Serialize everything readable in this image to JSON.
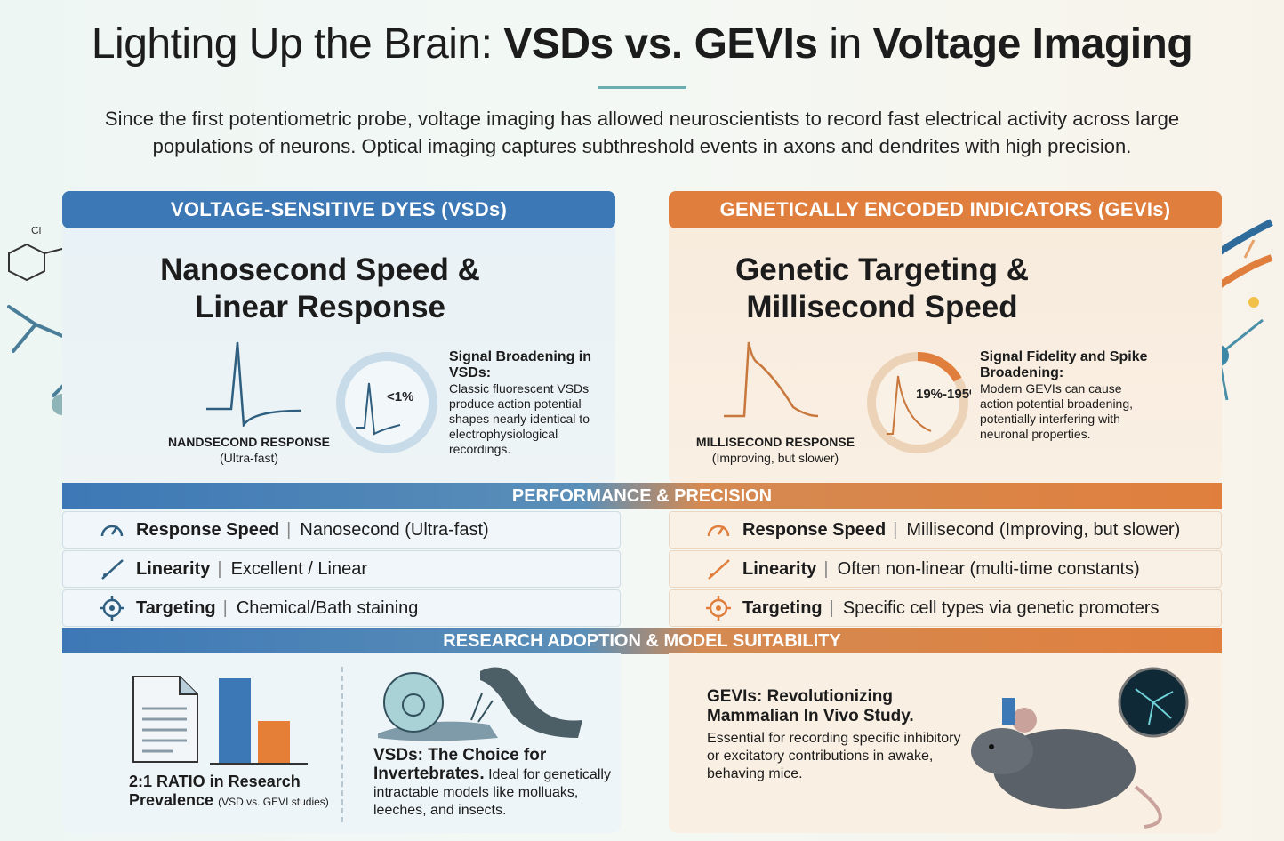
{
  "title": {
    "part1": "Lighting Up the Brain: ",
    "part2": "VSDs vs. GEVIs",
    "part3": " in ",
    "part4": "Voltage Imaging"
  },
  "intro": "Since the first potentiometric probe, voltage imaging has allowed neuroscientists to record fast electrical activity across large populations of neurons. Optical imaging captures subthreshold events in axons and dendrites with high precision.",
  "colors": {
    "vsd": "#3d78b6",
    "gevi": "#e07f3d"
  },
  "vsd": {
    "header": "VOLTAGE-SENSITIVE DYES (VSDs)",
    "headline": "Nanosecond Speed & Linear Response",
    "wave_label": "NANDSECOND RESPONSE",
    "wave_sub": "(Ultra-fast)",
    "ring_value": "<1%",
    "side_title": "Signal Broadening in VSDs:",
    "side_text": "Classic fluorescent VSDs produce action potential shapes nearly identical to electrophysiological recordings.",
    "molecule_label": "Cl"
  },
  "gevi": {
    "header": "GENETICALLY ENCODED INDICATORS (GEVIs)",
    "headline": "Genetic Targeting & Millisecond Speed",
    "wave_label": "MILLISECOND RESPONSE",
    "wave_sub": "(Improving, but slower)",
    "ring_value": "19%-195%",
    "side_title": "Signal Fidelity and Spike Broadening:",
    "side_text": "Modern GEVIs can cause action potential broadening, potentially interfering with neuronal properties."
  },
  "performance": {
    "header": "PERFORMANCE & PRECISION",
    "vsd_rows": [
      {
        "icon": "speedometer-icon",
        "label": "Response Speed",
        "value": "Nanosecond (Ultra-fast)"
      },
      {
        "icon": "linearity-icon",
        "label": "Linearity",
        "value": "Excellent / Linear"
      },
      {
        "icon": "target-icon",
        "label": "Targeting",
        "value": "Chemical/Bath staining"
      }
    ],
    "gevi_rows": [
      {
        "icon": "speedometer-icon",
        "label": "Response Speed",
        "value": "Millisecond (Improving, but slower)"
      },
      {
        "icon": "linearity-icon",
        "label": "Linearity",
        "value": "Often non-linear (multi-time constants)"
      },
      {
        "icon": "target-icon",
        "label": "Targeting",
        "value": "Specific cell types via genetic promoters"
      }
    ]
  },
  "research": {
    "header": "RESEARCH ADOPTION & MODEL SUITABILITY",
    "ratio_bars": {
      "vsd": 2,
      "gevi": 1
    },
    "ratio_title": "2:1 RATIO in Research",
    "ratio_title2": "Prevalence",
    "ratio_note": "(VSD vs. GEVI studies)",
    "invert_title": "VSDs: The Choice for Invertebrates.",
    "invert_text": "Ideal for genetically intractable models like molluaks, leeches, and insects.",
    "mammal_title": "GEVIs: Revolutionizing Mammalian In Vivo Study.",
    "mammal_text": "Essential for recording specific inhibitory or excitatory contributions in awake, behaving mice."
  }
}
